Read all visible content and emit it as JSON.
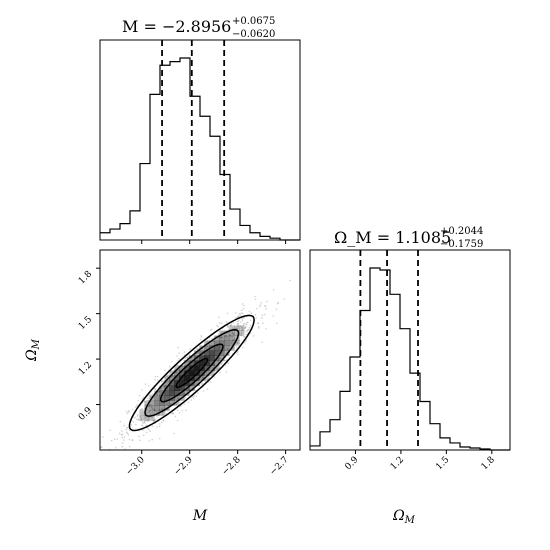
{
  "chart_data": {
    "type": "corner",
    "parameters": [
      "M",
      "Ω_M"
    ],
    "panels": [
      {
        "id": "hist-M",
        "type": "histogram",
        "param": "M",
        "title_value": "M = −2.8956",
        "title_plus": "+0.0675",
        "title_minus": "−0.0620",
        "xlim": [
          -3.087,
          -2.67
        ],
        "bins_start": -3.087,
        "bin_width": 0.02085,
        "counts": [
          0.04,
          0.06,
          0.09,
          0.16,
          0.42,
          0.8,
          0.96,
          0.98,
          1.0,
          0.79,
          0.68,
          0.57,
          0.36,
          0.17,
          0.08,
          0.04,
          0.02,
          0.01,
          0.0,
          0.0
        ],
        "quantiles": [
          -2.9576,
          -2.8956,
          -2.8281
        ]
      },
      {
        "id": "hist-omega",
        "type": "histogram",
        "param": "Ω_M",
        "title_value": "Ω_M = 1.1085",
        "title_plus": "+0.2044",
        "title_minus": "−0.1759",
        "xlim": [
          0.6,
          1.92
        ],
        "bins_start": 0.6,
        "bin_width": 0.066,
        "counts": [
          0.02,
          0.09,
          0.15,
          0.29,
          0.46,
          0.69,
          0.9,
          0.89,
          0.77,
          0.6,
          0.38,
          0.24,
          0.13,
          0.06,
          0.035,
          0.015,
          0.01,
          0.005,
          0.0,
          0.0
        ],
        "quantiles": [
          0.9326,
          1.1085,
          1.3129
        ]
      },
      {
        "id": "joint",
        "type": "2d-density",
        "x_param": "M",
        "y_param": "Ω_M",
        "xlim": [
          -3.087,
          -2.67
        ],
        "ylim": [
          0.6,
          1.92
        ],
        "mean": [
          -2.8956,
          1.1085
        ],
        "sigma": [
          0.065,
          0.19
        ],
        "correlation": 0.92,
        "contour_levels_sigma": [
          0.5,
          1.0,
          1.5,
          2.0
        ]
      }
    ],
    "x_ticks_M": [
      "−3.0",
      "−2.9",
      "−2.8",
      "−2.7"
    ],
    "x_tick_values_M": [
      -3.0,
      -2.9,
      -2.8,
      -2.7
    ],
    "ticks_omega": [
      "0.9",
      "1.2",
      "1.5",
      "1.8"
    ],
    "tick_values_omega": [
      0.9,
      1.2,
      1.5,
      1.8
    ],
    "xlabel_M": "M",
    "xlabel_omega": "Ω",
    "xlabel_omega_sub": "M",
    "ylabel_omega": "Ω",
    "ylabel_omega_sub": "M"
  }
}
